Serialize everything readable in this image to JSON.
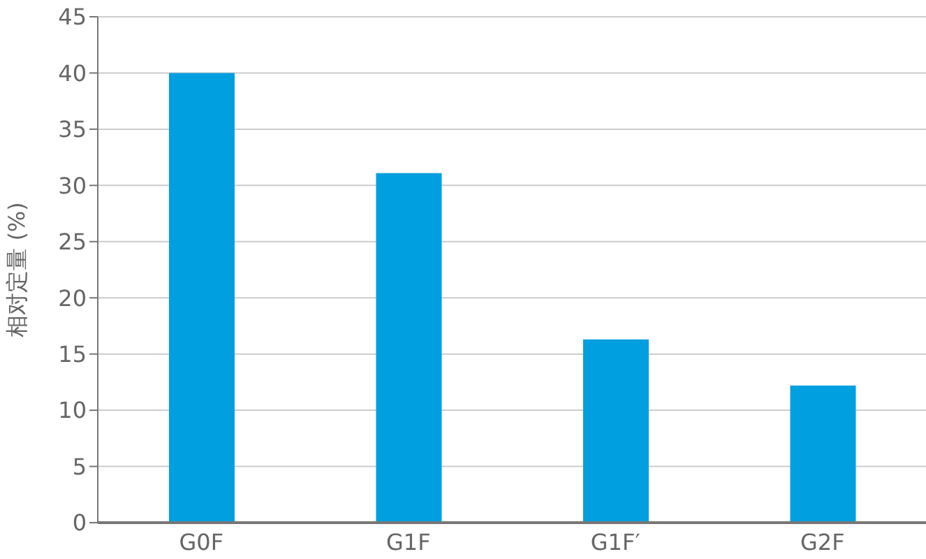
{
  "chart_data": {
    "type": "bar",
    "ylabel": "相对定量 (%)",
    "categories": [
      "G0F",
      "G1F",
      "G1F′",
      "G2F"
    ],
    "values": [
      40,
      31.1,
      16.3,
      12.2
    ],
    "color": "#009fe0",
    "ylim": [
      0,
      45
    ],
    "yticks": [
      0,
      5,
      10,
      15,
      20,
      25,
      30,
      35,
      40,
      45
    ],
    "grid": "y"
  }
}
